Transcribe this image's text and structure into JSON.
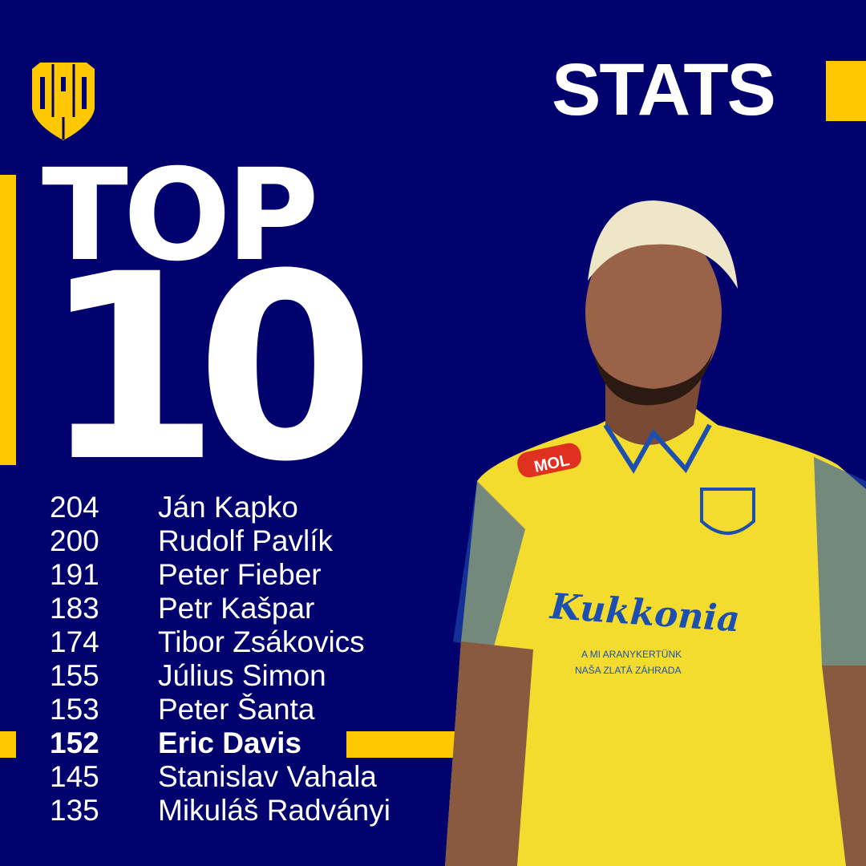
{
  "brand": {
    "logo_text": "DAC",
    "accent_color": "#ffc800",
    "background_color": "#02026f"
  },
  "header": {
    "title": "STATS"
  },
  "headline": {
    "line1": "TOP",
    "line2": "10"
  },
  "ranking": [
    {
      "value": "204",
      "name": "Ján Kapko",
      "highlighted": false
    },
    {
      "value": "200",
      "name": "Rudolf Pavlík",
      "highlighted": false
    },
    {
      "value": "191",
      "name": "Peter Fieber",
      "highlighted": false
    },
    {
      "value": "183",
      "name": "Petr Kašpar",
      "highlighted": false
    },
    {
      "value": "174",
      "name": "Tibor Zsákovics",
      "highlighted": false
    },
    {
      "value": "155",
      "name": "Július Simon",
      "highlighted": false
    },
    {
      "value": "153",
      "name": "Peter Šanta",
      "highlighted": false
    },
    {
      "value": "152",
      "name": "Eric Davis",
      "highlighted": true
    },
    {
      "value": "145",
      "name": "Stanislav Vahala",
      "highlighted": false
    },
    {
      "value": "135",
      "name": "Mikuláš Radványi",
      "highlighted": false
    }
  ],
  "player_photo": {
    "jersey_sponsor": "Kukkonia",
    "jersey_tagline1": "A MI ARANYKERTÜNK",
    "jersey_tagline2": "NAŠA ZLATÁ ZÁHRADA",
    "sleeve_sponsor": "MOL"
  }
}
